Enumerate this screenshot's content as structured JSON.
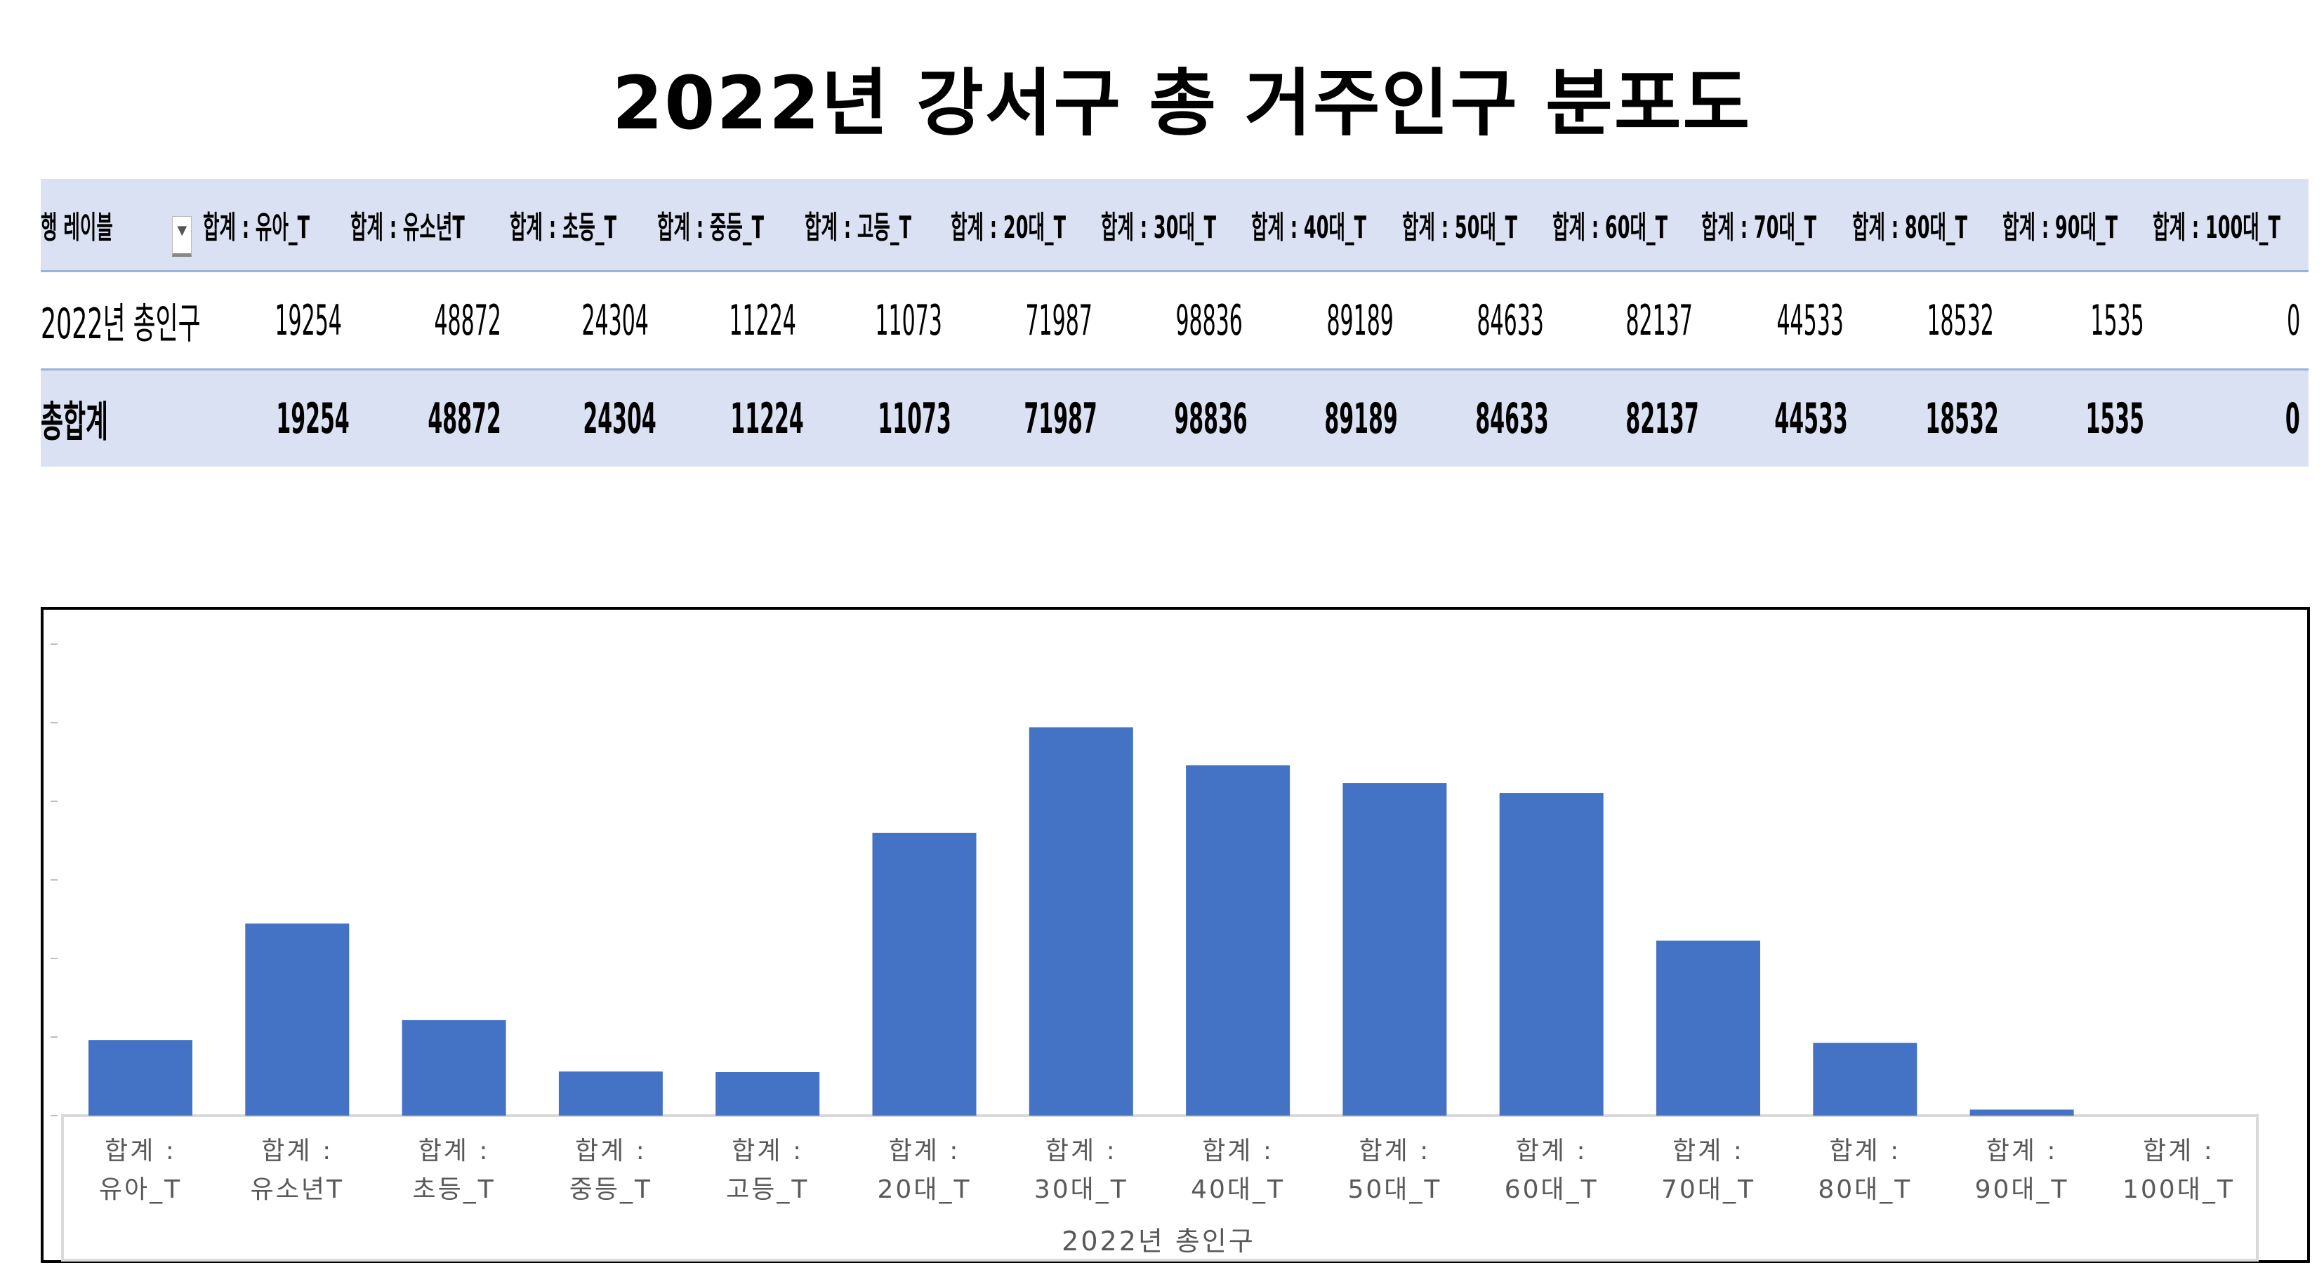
{
  "title": "2022년 강서구 총 거주인구 분포도",
  "table": {
    "row_label_header": "행 레이블",
    "filter_icon": "dropdown-filter-icon",
    "headers": [
      "합계 : 유아_T",
      "합계 : 유소년T",
      "합계 : 초등_T",
      "합계 : 중등_T",
      "합계 : 고등_T",
      "합계 : 20대_T",
      "합계 : 30대_T",
      "합계 : 40대_T",
      "합계 : 50대_T",
      "합계 : 60대_T",
      "합계 : 70대_T",
      "합계 : 80대_T",
      "합계 : 90대_T",
      "합계 : 100대_T"
    ],
    "rows": [
      {
        "label": "2022년 총인구",
        "values": [
          "19254",
          "48872",
          "24304",
          "11224",
          "11073",
          "71987",
          "98836",
          "89189",
          "84633",
          "82137",
          "44533",
          "18532",
          "1535",
          "0"
        ]
      },
      {
        "label": "총합계",
        "values": [
          "19254",
          "48872",
          "24304",
          "11224",
          "11073",
          "71987",
          "98836",
          "89189",
          "84633",
          "82137",
          "44533",
          "18532",
          "1535",
          "0"
        ]
      }
    ],
    "header_bg": "#d9e1f2"
  },
  "chart_data": {
    "type": "bar",
    "categories": [
      [
        "합계 :",
        "유아_T"
      ],
      [
        "합계 :",
        "유소년T"
      ],
      [
        "합계 :",
        "초등_T"
      ],
      [
        "합계 :",
        "중등_T"
      ],
      [
        "합계 :",
        "고등_T"
      ],
      [
        "합계 :",
        "20대_T"
      ],
      [
        "합계 :",
        "30대_T"
      ],
      [
        "합계 :",
        "40대_T"
      ],
      [
        "합계 :",
        "50대_T"
      ],
      [
        "합계 :",
        "60대_T"
      ],
      [
        "합계 :",
        "70대_T"
      ],
      [
        "합계 :",
        "80대_T"
      ],
      [
        "합계 :",
        "90대_T"
      ],
      [
        "합계 :",
        "100대_T"
      ]
    ],
    "values": [
      19254,
      48872,
      24304,
      11224,
      11073,
      71987,
      98836,
      89189,
      84633,
      82137,
      44533,
      18532,
      1535,
      0
    ],
    "xlabel": "2022년 총인구",
    "ylabel": "",
    "ylim": [
      0,
      120000
    ],
    "y_ticks": [
      0,
      20000,
      40000,
      60000,
      80000,
      100000,
      120000
    ],
    "y_tick_labels_shown": false,
    "grid": false,
    "bar_color": "#4472c4"
  }
}
